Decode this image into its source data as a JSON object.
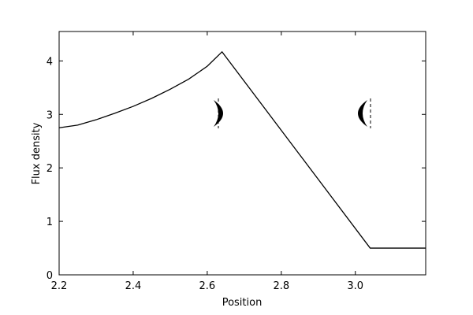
{
  "chart_data": {
    "type": "line",
    "xlabel": "Position",
    "ylabel": "Flux density",
    "x": [
      2.2,
      2.25,
      2.3,
      2.35,
      2.4,
      2.45,
      2.5,
      2.55,
      2.6,
      2.64,
      3.04,
      3.19
    ],
    "series": [
      {
        "color": "#000000",
        "values": [
          2.75,
          2.8,
          2.9,
          3.02,
          3.15,
          3.3,
          3.47,
          3.66,
          3.9,
          4.17,
          0.5,
          0.5
        ]
      }
    ],
    "xlim": [
      2.2,
      3.19
    ],
    "ylim": [
      0,
      4.55
    ],
    "xticks": [
      2.2,
      2.4,
      2.6,
      2.8,
      {
        "value": 3.0,
        "label": "3.0"
      }
    ],
    "yticks": [
      0,
      1,
      2,
      3,
      4
    ]
  }
}
